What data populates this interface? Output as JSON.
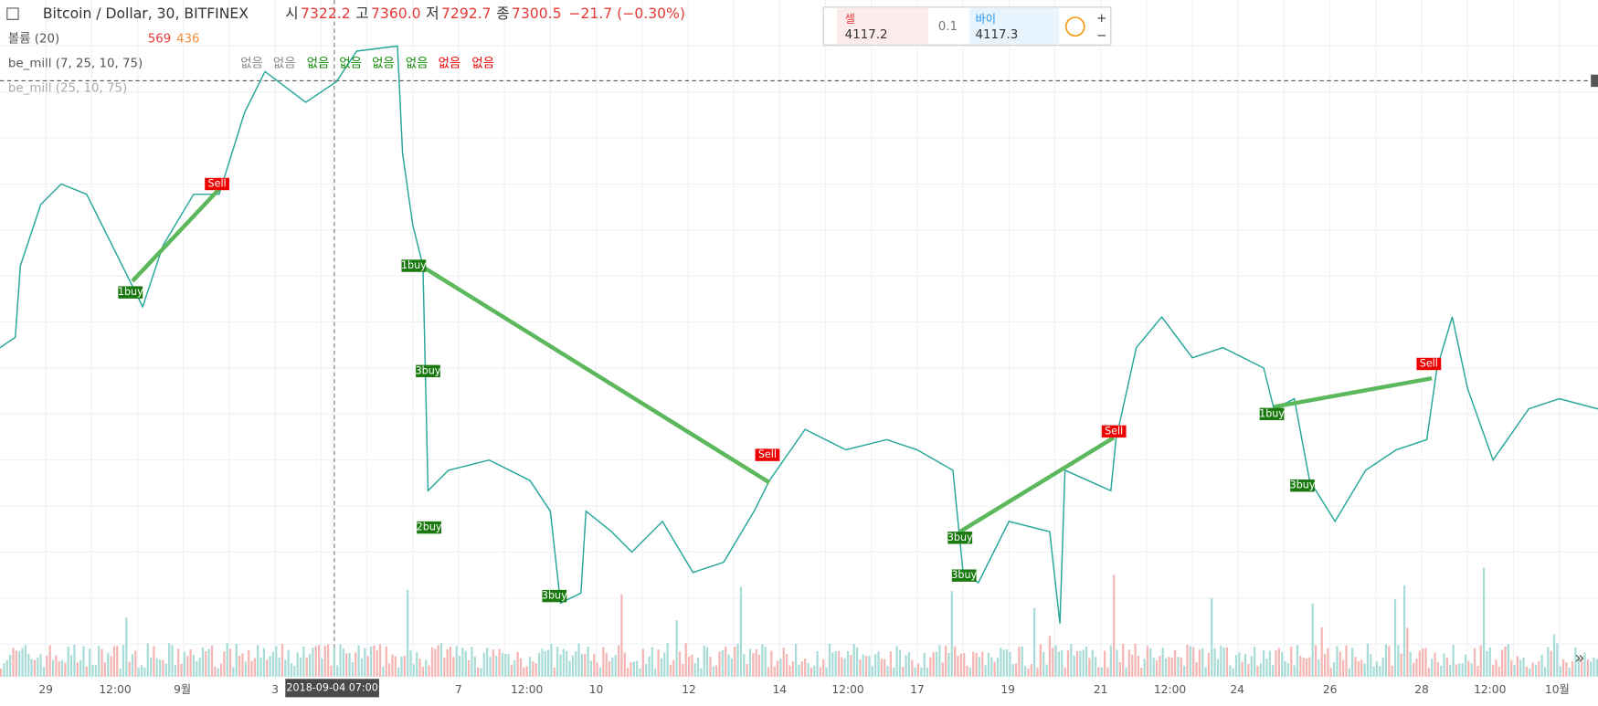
{
  "header": {
    "symbol": "Bitcoin / Dollar, 30, BITFINEX",
    "ohlc": [
      {
        "label": "시",
        "value": "7322.2"
      },
      {
        "label": "고",
        "value": "7360.0"
      },
      {
        "label": "저",
        "value": "7292.7"
      },
      {
        "label": "종",
        "value": "7300.5"
      }
    ],
    "change": "−21.7 (−0.30%)"
  },
  "indicators": [
    {
      "name": "볼륨 (20)",
      "values": [
        "569",
        "436"
      ]
    },
    {
      "name": "be_mill (7, 25, 10, 75)",
      "values": [
        "없음",
        "없음",
        "없음",
        "없음",
        "없음",
        "없음",
        "없음",
        "없음"
      ]
    },
    {
      "name": "be_mill (25, 10, 75)",
      "values": []
    }
  ],
  "order_panel": {
    "sell_label": "셀",
    "sell_price": "4117.2",
    "quantity": "0.1",
    "buy_label": "바이",
    "buy_price": "4117.3"
  },
  "x_axis": {
    "labels": [
      "29",
      "12:00",
      "9월",
      "3",
      "7",
      "12:00",
      "10",
      "12",
      "14",
      "12:00",
      "17",
      "19",
      "21",
      "12:00",
      "24",
      "26",
      "28",
      "12:00",
      "10월"
    ],
    "crosshair_label": "2018-09-04  07:00"
  },
  "signals": [
    "Sell",
    "1buy",
    "1buy",
    "3buy",
    "2buy",
    "3buy",
    "Sell",
    "3buy",
    "3buy",
    "Sell",
    "1buy",
    "Sell",
    "3buy"
  ]
}
